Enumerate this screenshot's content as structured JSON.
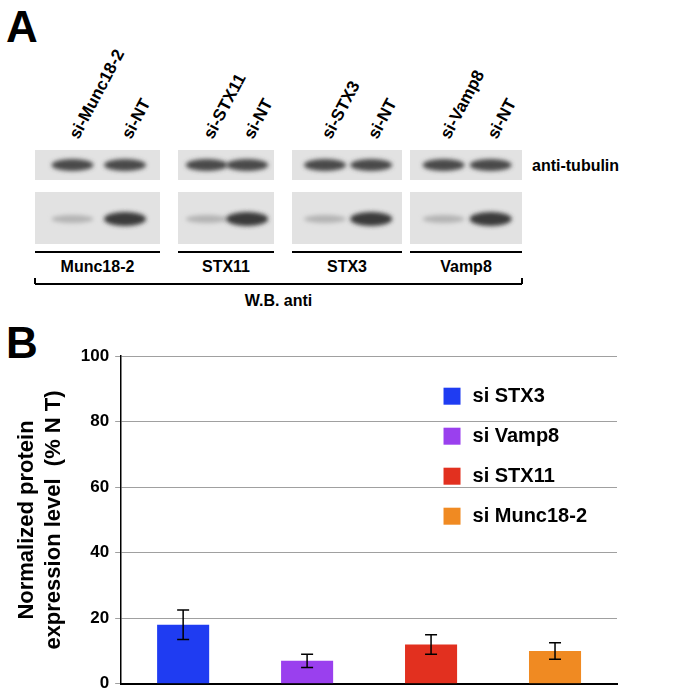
{
  "panel_labels": [
    "A",
    "B"
  ],
  "blot": {
    "groups": [
      {
        "lanes": [
          "si-Munc18-2",
          "si-NT"
        ],
        "target": "Munc18-2"
      },
      {
        "lanes": [
          "si-STX11",
          "si-NT"
        ],
        "target": "STX11"
      },
      {
        "lanes": [
          "si-STX3",
          "si-NT"
        ],
        "target": "STX3"
      },
      {
        "lanes": [
          "si-Vamp8",
          "si-NT"
        ],
        "target": "Vamp8"
      }
    ],
    "loading_control": "anti-tubulin",
    "footer": "W.B. anti"
  },
  "chart_data": {
    "type": "bar",
    "y_label": [
      "Normalized protein",
      "expression level  (% N T)"
    ],
    "categories": [
      null,
      null,
      null,
      null
    ],
    "series": [
      {
        "name": "si STX3",
        "color": "#1f3cf2",
        "values": [
          18,
          null,
          null,
          null
        ],
        "errors": [
          4.5,
          null,
          null,
          null
        ]
      },
      {
        "name": "si Vamp8",
        "color": "#9a40ee",
        "values": [
          null,
          7,
          null,
          null
        ],
        "errors": [
          null,
          2,
          null,
          null
        ]
      },
      {
        "name": "si STX11",
        "color": "#e2301f",
        "values": [
          null,
          null,
          12,
          null
        ],
        "errors": [
          null,
          null,
          3,
          null
        ]
      },
      {
        "name": "si Munc18-2",
        "color": "#f08a22",
        "values": [
          null,
          null,
          null,
          10
        ],
        "errors": [
          null,
          null,
          null,
          2.5
        ]
      }
    ],
    "ylim": [
      0,
      100
    ],
    "yticks": [
      0,
      20,
      40,
      60,
      80,
      100
    ],
    "grid": true,
    "legend": "upper right",
    "tick_labels": "y"
  }
}
